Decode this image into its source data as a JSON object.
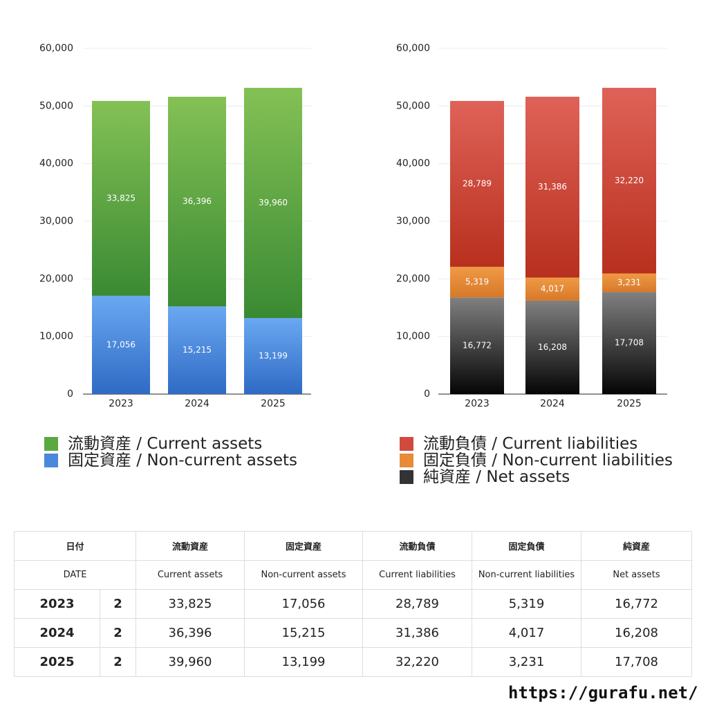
{
  "chart_data": [
    {
      "type": "bar",
      "stacked": true,
      "categories": [
        "2023",
        "2024",
        "2025"
      ],
      "ylim": [
        0,
        60000
      ],
      "yticks": [
        "0",
        "10,000",
        "20,000",
        "30,000",
        "40,000",
        "50,000",
        "60,000"
      ],
      "grid": true,
      "series": [
        {
          "name": "固定資産 / Non-current assets",
          "values": [
            17056,
            15215,
            13199
          ],
          "labels": [
            "17,056",
            "15,215",
            "13,199"
          ],
          "color_top": "#6aa8f2",
          "color_bottom": "#2f6ac4"
        },
        {
          "name": "流動資産 / Current assets",
          "values": [
            33825,
            36396,
            39960
          ],
          "labels": [
            "33,825",
            "36,396",
            "39,960"
          ],
          "color_top": "#84c155",
          "color_bottom": "#3a8a33"
        }
      ]
    },
    {
      "type": "bar",
      "stacked": true,
      "categories": [
        "2023",
        "2024",
        "2025"
      ],
      "ylim": [
        0,
        60000
      ],
      "yticks": [
        "0",
        "10,000",
        "20,000",
        "30,000",
        "40,000",
        "50,000",
        "60,000"
      ],
      "grid": true,
      "series": [
        {
          "name": "純資産 / Net assets",
          "values": [
            16772,
            16208,
            17708
          ],
          "labels": [
            "16,772",
            "16,208",
            "17,708"
          ],
          "color_top": "#808080",
          "color_bottom": "#050505"
        },
        {
          "name": "固定負債 / Non-current liabilities",
          "values": [
            5319,
            4017,
            3231
          ],
          "labels": [
            "5,319",
            "4,017",
            "3,231"
          ],
          "color_top": "#f09a45",
          "color_bottom": "#d6792a"
        },
        {
          "name": "流動負債 / Current liabilities",
          "values": [
            28789,
            31386,
            32220
          ],
          "labels": [
            "28,789",
            "31,386",
            "32,220"
          ],
          "color_top": "#df6258",
          "color_bottom": "#b8301e"
        }
      ]
    }
  ],
  "legend_left": [
    {
      "label": "流動資産 / Current assets",
      "color": "#5aa840"
    },
    {
      "label": "固定資産 / Non-current assets",
      "color": "#4a88dc"
    }
  ],
  "legend_right": [
    {
      "label": "流動負債 / Current liabilities",
      "color": "#d04a3e"
    },
    {
      "label": "固定負債 / Non-current liabilities",
      "color": "#e88a38"
    },
    {
      "label": "純資産 / Net assets",
      "color": "#333333"
    }
  ],
  "table": {
    "headers_jp": [
      "日付",
      "流動資産",
      "固定資産",
      "流動負債",
      "固定負債",
      "純資産"
    ],
    "headers_en": [
      "DATE",
      "Current assets",
      "Non-current assets",
      "Current liabilities",
      "Non-current liabilities",
      "Net assets"
    ],
    "rows": [
      {
        "year": "2023",
        "count": "2",
        "values": [
          "33,825",
          "17,056",
          "28,789",
          "5,319",
          "16,772"
        ]
      },
      {
        "year": "2024",
        "count": "2",
        "values": [
          "36,396",
          "15,215",
          "31,386",
          "4,017",
          "16,208"
        ]
      },
      {
        "year": "2025",
        "count": "2",
        "values": [
          "39,960",
          "13,199",
          "32,220",
          "3,231",
          "17,708"
        ]
      }
    ]
  },
  "site": "https://gurafu.net/"
}
